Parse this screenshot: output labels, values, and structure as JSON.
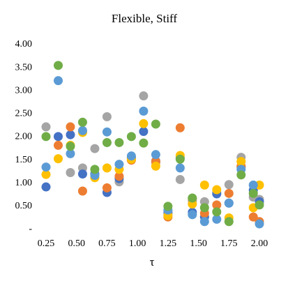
{
  "chart_data": {
    "type": "scatter",
    "title": "Flexible,  Stiff",
    "x_label": "τ",
    "x": [
      0.25,
      0.35,
      0.45,
      0.55,
      0.65,
      0.75,
      0.85,
      0.95,
      1.05,
      1.15,
      1.25,
      1.35,
      1.45,
      1.55,
      1.65,
      1.75,
      1.85,
      1.95,
      2.0
    ],
    "series": [
      {
        "color": "#a5a5a5",
        "values": [
          2.22,
          null,
          1.23,
          1.33,
          1.75,
          2.44,
          1.03,
          1.55,
          2.89,
          1.45,
          0.38,
          1.08,
          0.62,
          0.6,
          0.8,
          0.97,
          1.56,
          0.7,
          0.65
        ]
      },
      {
        "color": "#4472c4",
        "values": [
          0.92,
          2.01,
          2.05,
          1.2,
          1.2,
          0.8,
          1.1,
          1.55,
          2.12,
          1.48,
          0.35,
          1.55,
          0.37,
          0.27,
          0.77,
          0.57,
          1.35,
          0.85,
          0.6
        ]
      },
      {
        "color": "#ed7d31",
        "values": [
          null,
          1.82,
          2.22,
          0.83,
          null,
          0.9,
          1.15,
          1.5,
          null,
          1.47,
          0.27,
          2.2,
          0.67,
          0.35,
          0.53,
          0.78,
          1.37,
          0.27,
          0.17
        ]
      },
      {
        "color": "#ffc000",
        "values": [
          1.19,
          1.53,
          1.82,
          2.1,
          1.12,
          1.33,
          1.3,
          1.52,
          2.29,
          1.37,
          0.3,
          1.6,
          0.55,
          0.96,
          0.86,
          0.25,
          1.47,
          0.47,
          0.96
        ]
      },
      {
        "color": "#5b9bd5",
        "values": [
          1.35,
          3.22,
          1.64,
          2.14,
          1.17,
          2.11,
          1.41,
          1.59,
          2.56,
          1.62,
          0.42,
          1.33,
          0.32,
          0.17,
          0.22,
          0.57,
          1.3,
          0.96,
          0.12
        ]
      },
      {
        "color": "#70ad47",
        "values": [
          2.01,
          3.55,
          1.8,
          2.32,
          1.3,
          1.88,
          1.88,
          2.01,
          1.87,
          2.28,
          0.5,
          1.52,
          0.68,
          0.47,
          0.38,
          0.17,
          1.18,
          0.78,
          0.53
        ]
      }
    ],
    "xlim": [
      0.25,
      2.0
    ],
    "xticks": [
      0.25,
      {
        "value": 0.5,
        "label": "0.50"
      },
      0.75,
      {
        "value": 1,
        "label": "1.00"
      },
      1.25,
      {
        "value": 1.5,
        "label": "1.50"
      },
      1.75,
      {
        "value": 2,
        "label": "2.00"
      }
    ],
    "ylim": [
      0,
      4
    ],
    "yticks": [
      {
        "value": 0,
        "label": "-"
      },
      {
        "value": 0.5,
        "label": "0.50"
      },
      {
        "value": 1,
        "label": "1.00"
      },
      {
        "value": 1.5,
        "label": "1.50"
      },
      {
        "value": 2,
        "label": "2.00"
      },
      {
        "value": 2.5,
        "label": "2.50"
      },
      {
        "value": 3,
        "label": "3.00"
      },
      {
        "value": 3.5,
        "label": "3.50"
      },
      {
        "value": 4,
        "label": "4.00"
      }
    ],
    "grid": false
  }
}
